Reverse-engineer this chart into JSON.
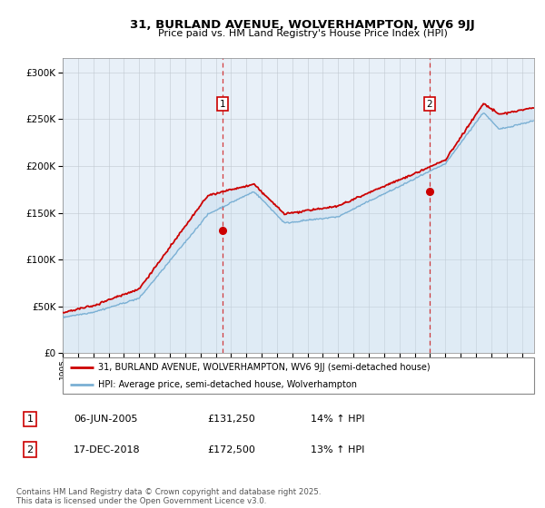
{
  "title_line1": "31, BURLAND AVENUE, WOLVERHAMPTON, WV6 9JJ",
  "title_line2": "Price paid vs. HM Land Registry's House Price Index (HPI)",
  "ylabel_ticks": [
    "£0",
    "£50K",
    "£100K",
    "£150K",
    "£200K",
    "£250K",
    "£300K"
  ],
  "ylabel_values": [
    0,
    50000,
    100000,
    150000,
    200000,
    250000,
    300000
  ],
  "ylim": [
    0,
    315000
  ],
  "xlim_start": 1995.0,
  "xlim_end": 2025.8,
  "sale1_date": 2005.43,
  "sale1_price": 131250,
  "sale1_label": "1",
  "sale2_date": 2018.96,
  "sale2_price": 172500,
  "sale2_label": "2",
  "legend_line1": "31, BURLAND AVENUE, WOLVERHAMPTON, WV6 9JJ (semi-detached house)",
  "legend_line2": "HPI: Average price, semi-detached house, Wolverhampton",
  "table_row1_label": "1",
  "table_row1_date": "06-JUN-2005",
  "table_row1_price": "£131,250",
  "table_row1_hpi": "14% ↑ HPI",
  "table_row2_label": "2",
  "table_row2_date": "17-DEC-2018",
  "table_row2_price": "£172,500",
  "table_row2_hpi": "13% ↑ HPI",
  "footer": "Contains HM Land Registry data © Crown copyright and database right 2025.\nThis data is licensed under the Open Government Licence v3.0.",
  "hpi_fill_color": "#c8ddf0",
  "hpi_line_color": "#7ab0d4",
  "price_color": "#cc0000",
  "bg_color": "#e8f0f8",
  "sale_marker_color": "#cc0000",
  "grid_color": "#c0c8d0",
  "box_label_color": "#cc0000"
}
